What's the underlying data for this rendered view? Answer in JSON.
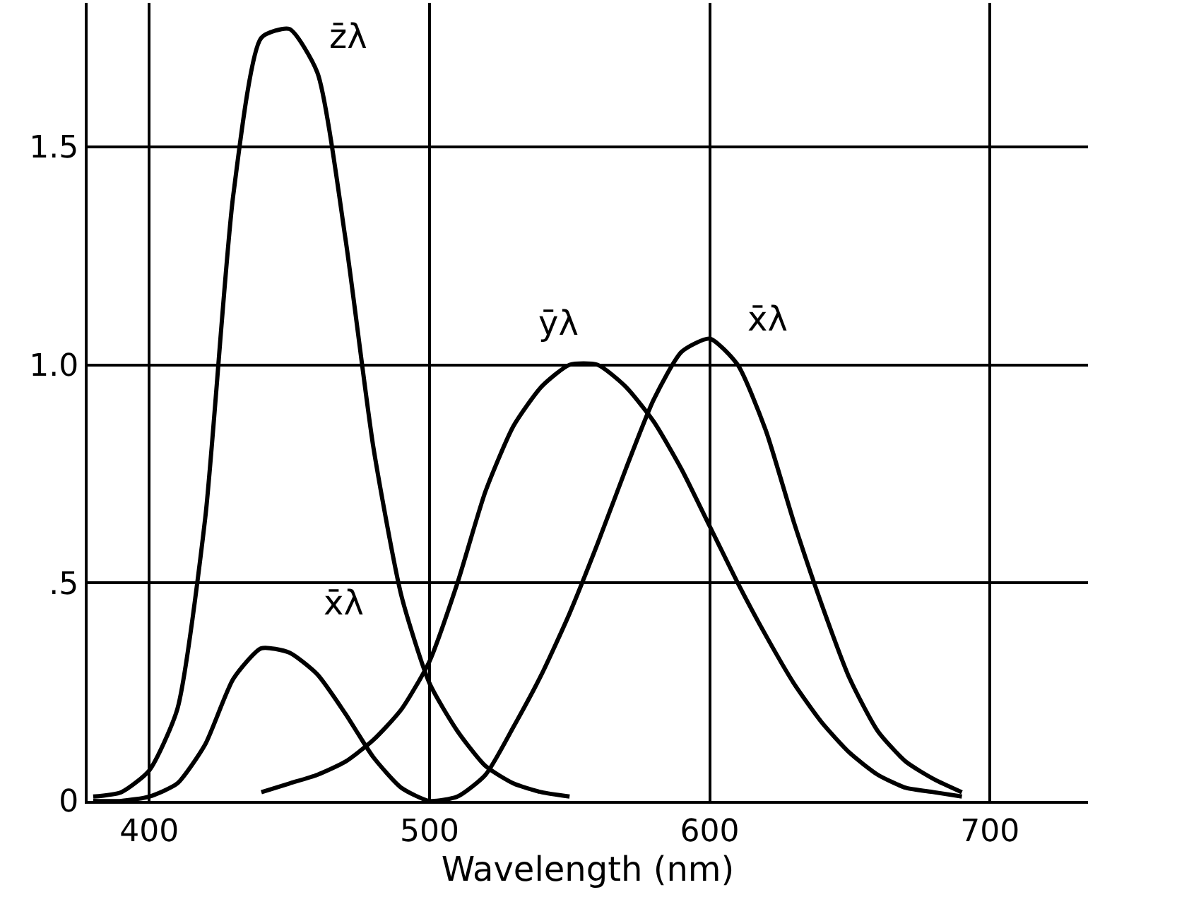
{
  "chart_data": {
    "type": "line",
    "xlabel": "Wavelength (nm)",
    "series": [
      {
        "color": "#000000",
        "x": [
          380,
          390,
          400,
          410,
          420,
          430,
          440,
          450,
          460,
          470,
          480,
          490,
          500,
          510,
          520,
          530,
          540,
          550,
          560,
          570,
          580,
          590,
          600,
          610,
          620,
          630,
          640,
          650,
          660,
          670,
          680,
          690
        ],
        "values": [
          0.0,
          0.0,
          0.01,
          0.04,
          0.13,
          0.28,
          0.35,
          0.34,
          0.29,
          0.2,
          0.1,
          0.03,
          0.0,
          0.01,
          0.06,
          0.17,
          0.29,
          0.43,
          0.59,
          0.76,
          0.92,
          1.03,
          1.06,
          1.0,
          0.85,
          0.64,
          0.45,
          0.28,
          0.16,
          0.09,
          0.05,
          0.02
        ]
      },
      {
        "color": "#000000",
        "x": [
          440,
          450,
          460,
          470,
          480,
          490,
          500,
          510,
          520,
          530,
          540,
          550,
          560,
          570,
          580,
          590,
          600,
          610,
          620,
          630,
          640,
          650,
          660,
          670,
          680,
          690
        ],
        "values": [
          0.02,
          0.04,
          0.06,
          0.09,
          0.14,
          0.21,
          0.32,
          0.5,
          0.71,
          0.86,
          0.95,
          1.0,
          1.0,
          0.95,
          0.87,
          0.76,
          0.63,
          0.5,
          0.38,
          0.27,
          0.18,
          0.11,
          0.06,
          0.03,
          0.02,
          0.01
        ]
      },
      {
        "color": "#000000",
        "x": [
          380,
          390,
          400,
          410,
          420,
          430,
          440,
          450,
          460,
          470,
          480,
          490,
          500,
          510,
          520,
          530,
          540,
          550
        ],
        "values": [
          0.01,
          0.02,
          0.07,
          0.21,
          0.65,
          1.39,
          1.75,
          1.77,
          1.67,
          1.29,
          0.81,
          0.47,
          0.27,
          0.16,
          0.08,
          0.04,
          0.02,
          0.01
        ]
      }
    ],
    "annotations": [
      "z̄λ",
      "ȳλ",
      "x̄λ",
      "x̄λ"
    ],
    "xlim": [
      378,
      735
    ],
    "ylim": [
      0,
      1.83
    ],
    "xticks": [
      400,
      500,
      600,
      700
    ],
    "yticks": [
      0,
      {
        "value": 0.5,
        "label": ".5"
      },
      {
        "value": 1.0,
        "label": "1.0"
      },
      {
        "value": 1.5,
        "label": "1.5"
      }
    ],
    "grid": true,
    "marker": "none",
    "line_style": "solid"
  }
}
